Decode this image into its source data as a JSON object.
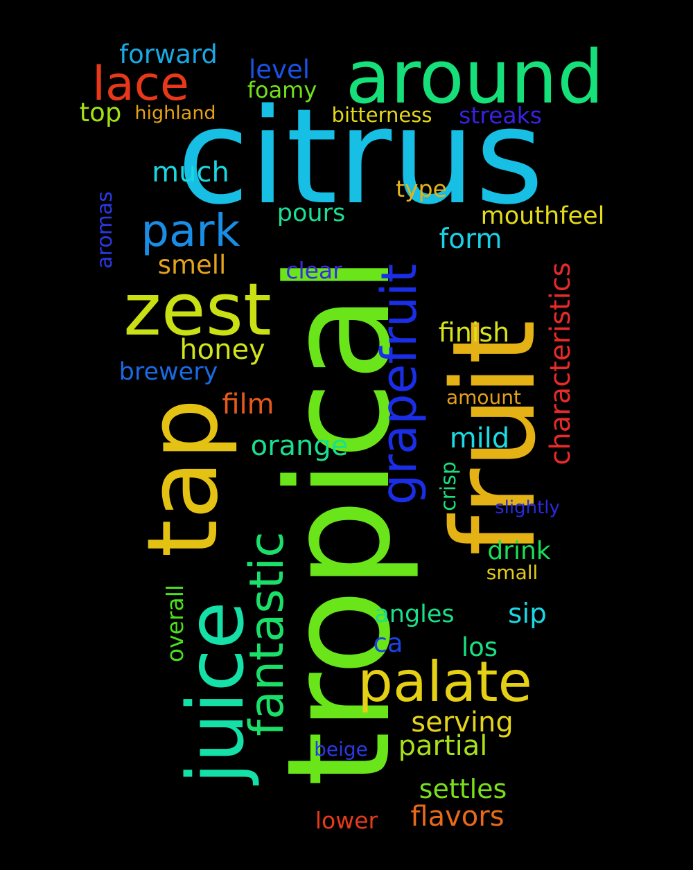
{
  "background": "#000000",
  "words": [
    {
      "text": "citrus",
      "color": "#16bfe3"
    },
    {
      "text": "tropical",
      "color": "#6ae51a"
    },
    {
      "text": "fruit",
      "color": "#e4b214"
    },
    {
      "text": "tap",
      "color": "#e4c214"
    },
    {
      "text": "around",
      "color": "#16e07a"
    },
    {
      "text": "zest",
      "color": "#c8e014"
    },
    {
      "text": "juice",
      "color": "#14e0a8"
    },
    {
      "text": "grapefruit",
      "color": "#1a2ee8"
    },
    {
      "text": "fantastic",
      "color": "#1ae06a"
    },
    {
      "text": "palate",
      "color": "#e4d014"
    },
    {
      "text": "park",
      "color": "#1a8ee4"
    },
    {
      "text": "lace",
      "color": "#e8381a"
    },
    {
      "text": "characteristics",
      "color": "#e82a2a"
    },
    {
      "text": "forward",
      "color": "#1aa8e4"
    },
    {
      "text": "level",
      "color": "#1a52e4"
    },
    {
      "text": "foamy",
      "color": "#74e01a"
    },
    {
      "text": "top",
      "color": "#a2e014"
    },
    {
      "text": "highland",
      "color": "#e4a214"
    },
    {
      "text": "bitterness",
      "color": "#e4d81a"
    },
    {
      "text": "streaks",
      "color": "#3a22e4"
    },
    {
      "text": "much",
      "color": "#1ad8e4"
    },
    {
      "text": "type",
      "color": "#e4b41a"
    },
    {
      "text": "pours",
      "color": "#1ae096"
    },
    {
      "text": "mouthfeel",
      "color": "#e4dc1a"
    },
    {
      "text": "aromas",
      "color": "#2a3ae4"
    },
    {
      "text": "form",
      "color": "#1ad0e4"
    },
    {
      "text": "smell",
      "color": "#e4a41a"
    },
    {
      "text": "clear",
      "color": "#3a2ae4"
    },
    {
      "text": "finish",
      "color": "#d8e41a"
    },
    {
      "text": "honey",
      "color": "#d2e41a"
    },
    {
      "text": "brewery",
      "color": "#1a6ae4"
    },
    {
      "text": "film",
      "color": "#e85a1a"
    },
    {
      "text": "amount",
      "color": "#e4a01a"
    },
    {
      "text": "mild",
      "color": "#1adce4"
    },
    {
      "text": "orange",
      "color": "#1ae08e"
    },
    {
      "text": "crisp",
      "color": "#1ae07a"
    },
    {
      "text": "slightly",
      "color": "#2a2ae4"
    },
    {
      "text": "drink",
      "color": "#1ae05a"
    },
    {
      "text": "small",
      "color": "#e4cc1a"
    },
    {
      "text": "overall",
      "color": "#4ae01a"
    },
    {
      "text": "sip",
      "color": "#1ad8e4"
    },
    {
      "text": "angles",
      "color": "#1ae08a"
    },
    {
      "text": "ca",
      "color": "#1a42e4"
    },
    {
      "text": "los",
      "color": "#1ae082"
    },
    {
      "text": "serving",
      "color": "#e4d41a"
    },
    {
      "text": "partial",
      "color": "#a8e01a"
    },
    {
      "text": "beige",
      "color": "#2a3ae4"
    },
    {
      "text": "settles",
      "color": "#7ae01a"
    },
    {
      "text": "flavors",
      "color": "#e86a1a"
    },
    {
      "text": "lower",
      "color": "#e83a1a"
    }
  ]
}
